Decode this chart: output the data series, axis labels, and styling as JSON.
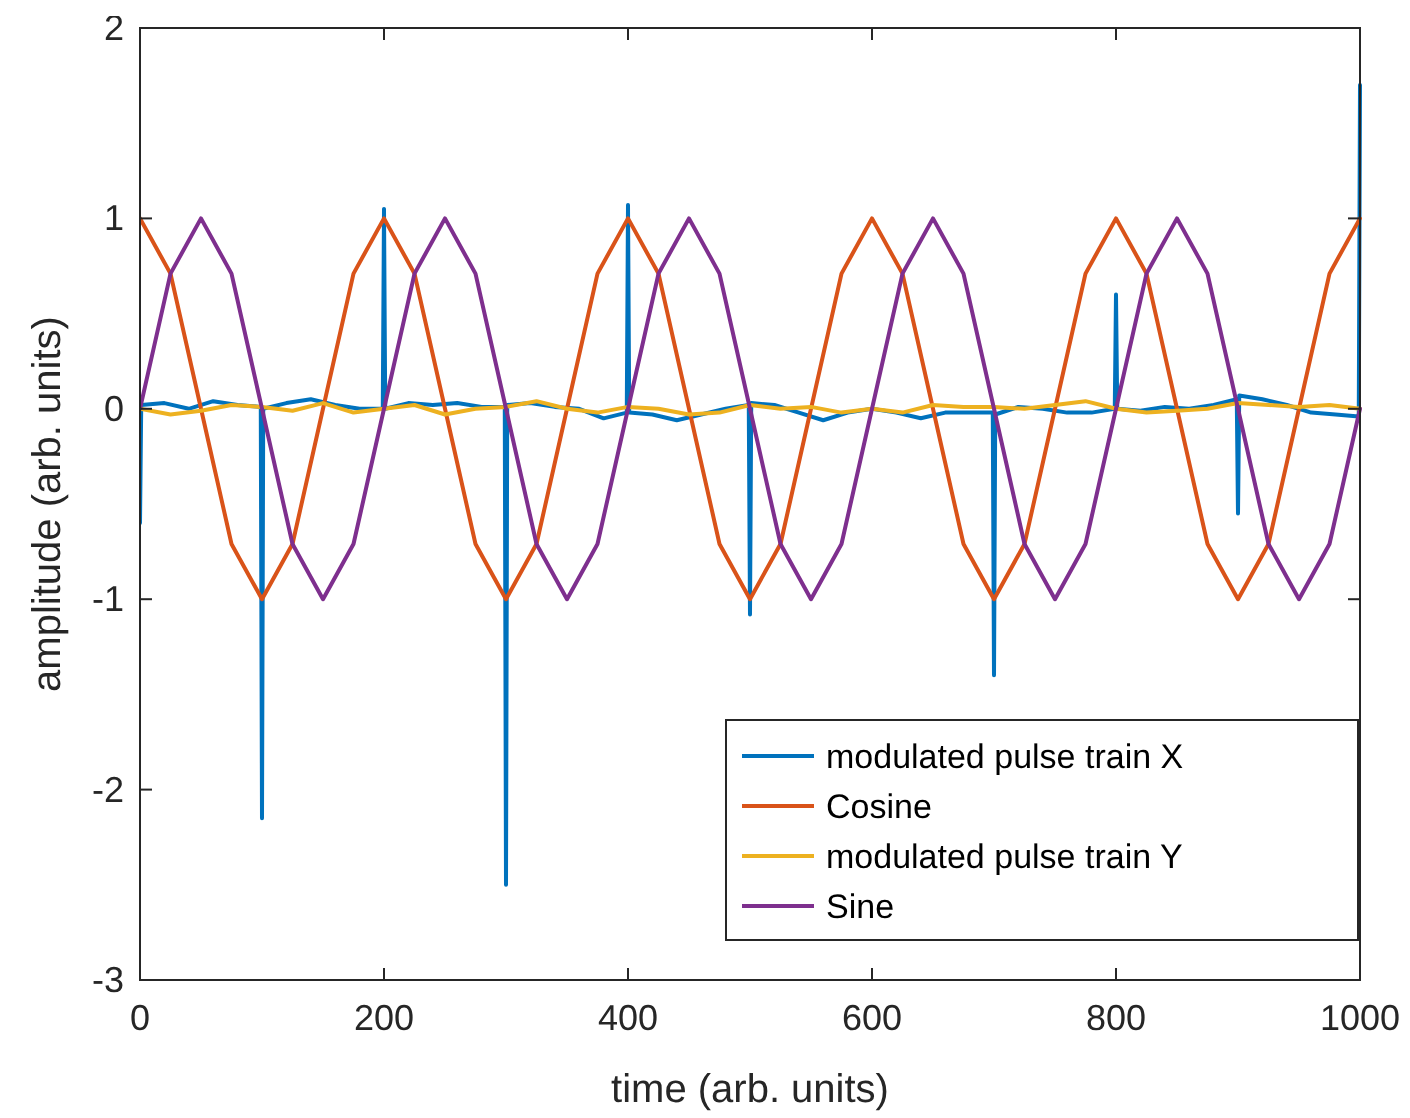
{
  "chart_data": {
    "type": "line",
    "xlabel": "time (arb. units)",
    "ylabel": "amplitude (arb. units)",
    "xlim": [
      0,
      1000
    ],
    "ylim": [
      -3,
      2
    ],
    "xticks": [
      0,
      200,
      400,
      600,
      800,
      1000
    ],
    "yticks": [
      -3,
      -2,
      -1,
      0,
      1,
      2
    ],
    "grid": false,
    "legend": "bottom right",
    "marker": "none",
    "line_style": "solid",
    "series": [
      {
        "name": "modulated pulse train X",
        "color": "#0072bd",
        "x": [
          0,
          1,
          20,
          40,
          60,
          80,
          99,
          100,
          101,
          120,
          140,
          160,
          180,
          199,
          200,
          201,
          220,
          240,
          260,
          280,
          299,
          300,
          301,
          320,
          340,
          360,
          380,
          399,
          400,
          401,
          420,
          440,
          460,
          480,
          499,
          500,
          501,
          520,
          540,
          560,
          580,
          600,
          620,
          640,
          660,
          680,
          699,
          700,
          701,
          720,
          740,
          760,
          780,
          799,
          800,
          801,
          820,
          840,
          860,
          880,
          899,
          900,
          901,
          920,
          940,
          960,
          980,
          999,
          1000
        ],
        "values": [
          -0.6,
          0.02,
          0.03,
          0.0,
          0.04,
          0.02,
          0.01,
          -2.15,
          0,
          0.03,
          0.05,
          0.02,
          0.0,
          0.0,
          1.05,
          0,
          0.03,
          0.02,
          0.03,
          0.01,
          0.01,
          -2.5,
          0.02,
          0.03,
          0.01,
          0.0,
          -0.05,
          -0.02,
          1.07,
          -0.02,
          -0.03,
          -0.06,
          -0.03,
          0.0,
          0.02,
          -1.08,
          0.03,
          0.02,
          -0.02,
          -0.06,
          -0.02,
          0.0,
          -0.02,
          -0.05,
          -0.02,
          -0.02,
          -0.02,
          -1.4,
          -0.03,
          0.01,
          0.0,
          -0.02,
          -0.02,
          0.0,
          0.6,
          0.0,
          -0.01,
          0.01,
          0.0,
          0.02,
          0.05,
          -0.55,
          0.07,
          0.05,
          0.02,
          -0.02,
          -0.03,
          -0.04,
          1.7
        ]
      },
      {
        "name": "Cosine",
        "color": "#d95319",
        "x": [
          0,
          25,
          50,
          75,
          100,
          125,
          150,
          175,
          200,
          225,
          250,
          275,
          300,
          325,
          350,
          375,
          400,
          425,
          450,
          475,
          500,
          525,
          550,
          575,
          600,
          625,
          650,
          675,
          700,
          725,
          750,
          775,
          800,
          825,
          850,
          875,
          900,
          925,
          950,
          975,
          1000
        ],
        "values": [
          1,
          0.71,
          0,
          -0.71,
          -1,
          -0.71,
          0,
          0.71,
          1,
          0.71,
          0,
          -0.71,
          -1,
          -0.71,
          0,
          0.71,
          1,
          0.71,
          0,
          -0.71,
          -1,
          -0.71,
          0,
          0.71,
          1,
          0.71,
          0,
          -0.71,
          -1,
          -0.71,
          0,
          0.71,
          1,
          0.71,
          0,
          -0.71,
          -1,
          -0.71,
          0,
          0.71,
          1
        ]
      },
      {
        "name": "modulated pulse train Y",
        "color": "#edb120",
        "x": [
          0,
          25,
          50,
          75,
          100,
          125,
          150,
          175,
          200,
          225,
          250,
          275,
          300,
          325,
          350,
          375,
          400,
          425,
          450,
          475,
          500,
          525,
          550,
          575,
          600,
          625,
          650,
          675,
          700,
          725,
          750,
          775,
          800,
          825,
          850,
          875,
          900,
          925,
          950,
          975,
          1000
        ],
        "values": [
          0,
          -0.03,
          -0.01,
          0.02,
          0.01,
          -0.01,
          0.03,
          -0.02,
          0.0,
          0.02,
          -0.03,
          0.0,
          0.01,
          0.04,
          0.0,
          -0.02,
          0.01,
          0.0,
          -0.03,
          -0.02,
          0.02,
          0.0,
          0.01,
          -0.02,
          0.0,
          -0.02,
          0.02,
          0.01,
          0.01,
          0.0,
          0.02,
          0.04,
          0.0,
          -0.02,
          -0.01,
          0.0,
          0.03,
          0.02,
          0.01,
          0.02,
          0.0
        ]
      },
      {
        "name": "Sine",
        "color": "#7e2f8e",
        "x": [
          0,
          25,
          50,
          75,
          100,
          125,
          150,
          175,
          200,
          225,
          250,
          275,
          300,
          325,
          350,
          375,
          400,
          425,
          450,
          475,
          500,
          525,
          550,
          575,
          600,
          625,
          650,
          675,
          700,
          725,
          750,
          775,
          800,
          825,
          850,
          875,
          900,
          925,
          950,
          975,
          1000
        ],
        "values": [
          0,
          0.71,
          1,
          0.71,
          0,
          -0.71,
          -1,
          -0.71,
          0,
          0.71,
          1,
          0.71,
          0,
          -0.71,
          -1,
          -0.71,
          0,
          0.71,
          1,
          0.71,
          0,
          -0.71,
          -1,
          -0.71,
          0,
          0.71,
          1,
          0.71,
          0,
          -0.71,
          -1,
          -0.71,
          0,
          0.71,
          1,
          0.71,
          0,
          -0.71,
          -1,
          -0.71,
          0
        ]
      }
    ]
  }
}
